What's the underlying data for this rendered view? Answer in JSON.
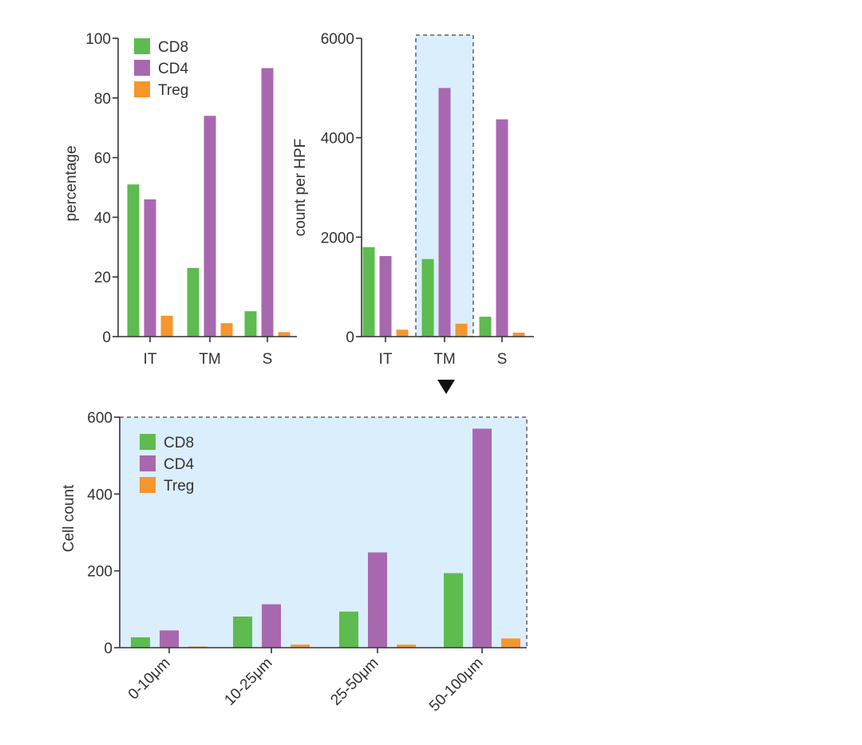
{
  "colors": {
    "CD8": "#5dbb4f",
    "CD4": "#a868b0",
    "Treg": "#f5962e",
    "highlight_fill": "#dbeefb",
    "axis": "#333333"
  },
  "marker_icon": "down-triangle-icon",
  "chart_data": [
    {
      "id": "percentage",
      "type": "bar",
      "categories": [
        "IT",
        "TM",
        "S"
      ],
      "series": [
        {
          "name": "CD8",
          "values": [
            51,
            23,
            8.5
          ]
        },
        {
          "name": "CD4",
          "values": [
            46,
            74,
            90
          ]
        },
        {
          "name": "Treg",
          "values": [
            7,
            4.5,
            1.5
          ]
        }
      ],
      "ylabel": "percentage",
      "ylim": [
        0,
        100
      ],
      "yticks": [
        0,
        20,
        40,
        60,
        80,
        100
      ],
      "ytick_labels": [
        "0",
        "20",
        "40",
        "60",
        "80",
        "100"
      ],
      "legend": "top-left",
      "grid": false
    },
    {
      "id": "count",
      "type": "bar",
      "categories": [
        "IT",
        "TM",
        "S"
      ],
      "series": [
        {
          "name": "CD8",
          "values": [
            1800,
            1560,
            400
          ]
        },
        {
          "name": "CD4",
          "values": [
            1620,
            5000,
            4370
          ]
        },
        {
          "name": "Treg",
          "values": [
            140,
            260,
            80
          ]
        }
      ],
      "ylabel": "count per HPF",
      "ylim": [
        0,
        6000
      ],
      "yticks": [
        0,
        2000,
        4000,
        6000
      ],
      "ytick_labels": [
        "0",
        "2000",
        "4000",
        "6000"
      ],
      "highlight_category": "TM",
      "grid": false
    },
    {
      "id": "cellcount",
      "type": "bar",
      "categories": [
        "0-10μm",
        "10-25μm",
        "25-50μm",
        "50-100μm"
      ],
      "series": [
        {
          "name": "CD8",
          "values": [
            27,
            81,
            94,
            194
          ]
        },
        {
          "name": "CD4",
          "values": [
            45,
            113,
            248,
            570
          ]
        },
        {
          "name": "Treg",
          "values": [
            3,
            8,
            8,
            24
          ]
        }
      ],
      "ylabel": "Cell count",
      "ylim": [
        0,
        600
      ],
      "yticks": [
        0,
        200,
        400,
        600
      ],
      "ytick_labels": [
        "0",
        "200",
        "400",
        "600"
      ],
      "legend": "top-left",
      "background_highlight": true,
      "grid": false
    }
  ]
}
